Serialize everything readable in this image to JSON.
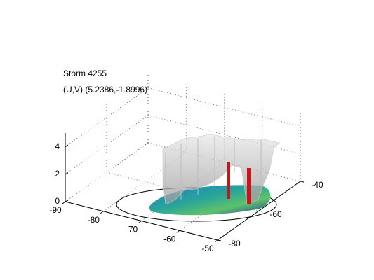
{
  "chart_data": {
    "type": "surface3d",
    "title": "Storm 4255",
    "subtitle": "(U,V) (5.2386,-1.8996)",
    "xlim": [
      -90,
      -50
    ],
    "xticks": [
      -90,
      -80,
      -70,
      -60,
      -50
    ],
    "ylim": [
      -80,
      -40
    ],
    "yticks": [
      -80,
      -60,
      -40
    ],
    "zlim": [
      0,
      5
    ],
    "zticks": [
      0,
      2,
      4
    ],
    "grid": true
  }
}
